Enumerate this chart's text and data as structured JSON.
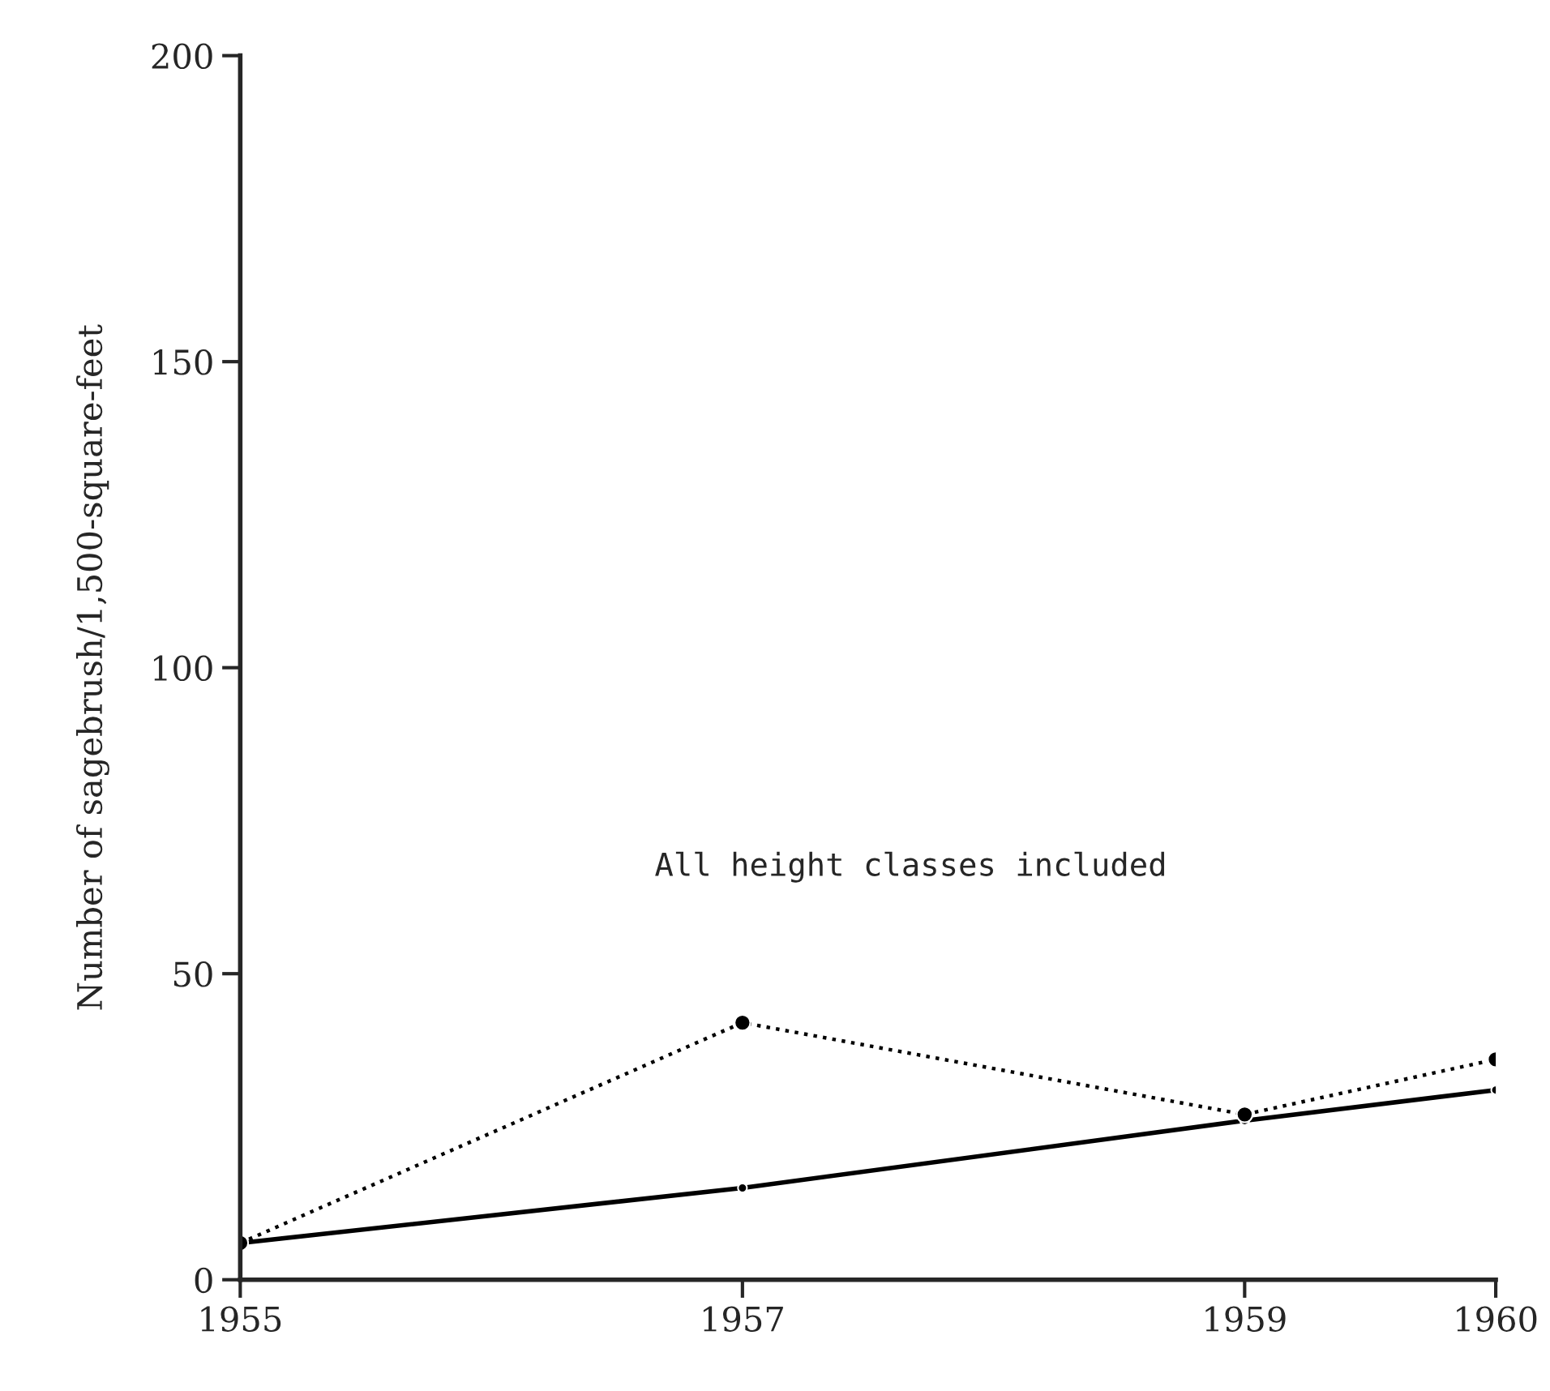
{
  "chart_data": {
    "type": "line",
    "ylabel": "Number of sagebrush/1,500-square-feet",
    "x": [
      1955,
      1957,
      1959,
      1960
    ],
    "series": [
      {
        "color": "#000000",
        "values": [
          6,
          15,
          26,
          31
        ],
        "line_style": "solid"
      },
      {
        "color": "#000000",
        "values": [
          6,
          42,
          27,
          36
        ],
        "line_style": "dotted"
      }
    ],
    "xlim": [
      1955,
      1960
    ],
    "xticks": [
      1955,
      1957,
      1959,
      1960
    ],
    "ylim": [
      0,
      200
    ],
    "yticks": [
      0,
      50,
      100,
      150,
      200
    ],
    "marker": "circle",
    "grid": false,
    "legend": false,
    "annotations": [
      "All height classes included"
    ]
  }
}
